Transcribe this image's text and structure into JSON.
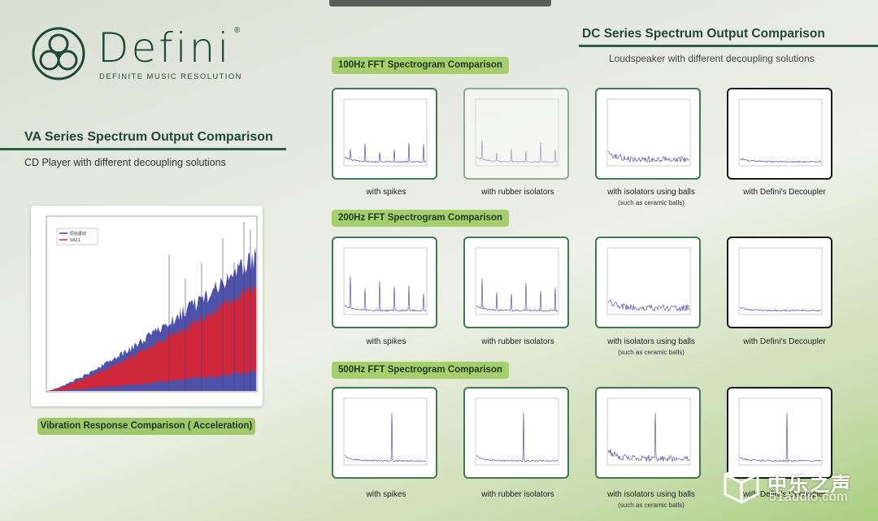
{
  "brand": {
    "name": "Defini",
    "registered": "®",
    "tagline": "DEFINITE MUSIC RESOLUTION"
  },
  "va": {
    "title": "VA Series Spectrum Output Comparison",
    "subtitle": "CD Player with different decoupling solutions",
    "chart_label": "Vibration Response Comparison ( Acceleration)",
    "legend": [
      "原始振动",
      "VA21"
    ],
    "series_colors": {
      "blue": "#3b3f9e",
      "red": "#d0283a"
    }
  },
  "dc": {
    "title": "DC Series Spectrum Output Comparison",
    "subtitle": "Loudspeaker with different decoupling solutions"
  },
  "sections": [
    {
      "label": "100Hz FFT Spectrogram Comparison",
      "cards": [
        {
          "caption": "with spikes",
          "note": ""
        },
        {
          "caption": "with rubber isolators",
          "note": ""
        },
        {
          "caption": "with isolators using balls",
          "note": "(such as ceramic balls)"
        },
        {
          "caption": "with Defini's Decoupler",
          "note": ""
        }
      ]
    },
    {
      "label": "200Hz FFT Spectrogram Comparison",
      "cards": [
        {
          "caption": "with spikes",
          "note": ""
        },
        {
          "caption": "with rubber isolators",
          "note": ""
        },
        {
          "caption": "with isolators using balls",
          "note": "(such as ceramic balls)"
        },
        {
          "caption": "with Defini's Decoupler",
          "note": ""
        }
      ]
    },
    {
      "label": "500Hz FFT Spectrogram Comparison",
      "cards": [
        {
          "caption": "with spikes",
          "note": ""
        },
        {
          "caption": "with rubber isolators",
          "note": ""
        },
        {
          "caption": "with isolators using balls",
          "note": "(such as ceramic balls)"
        },
        {
          "caption": "with Defini's Decoupler",
          "note": ""
        }
      ]
    }
  ],
  "watermark": {
    "text": "中乐之声",
    "url": "51audio.com"
  }
}
